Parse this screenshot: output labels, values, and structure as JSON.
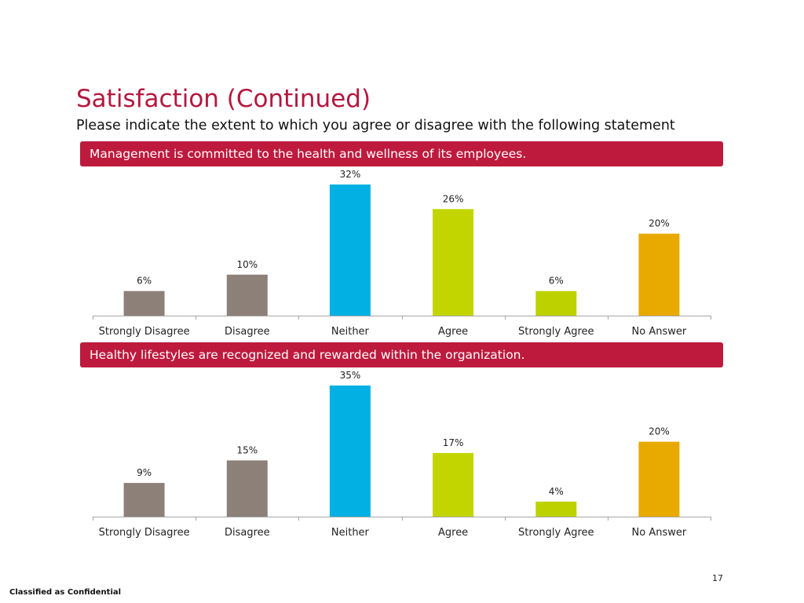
{
  "title": "Satisfaction (Continued)",
  "subtitle": "Please indicate the extent to which you agree or disagree with the following statement",
  "page_number": "17",
  "footer": "Classified as Confidential",
  "chart_data": [
    {
      "type": "bar",
      "title": "Management is committed to the health and wellness of its employees.",
      "categories": [
        "Strongly Disagree",
        "Disagree",
        "Neither",
        "Agree",
        "Strongly Agree",
        "No Answer"
      ],
      "values": [
        6,
        10,
        32,
        26,
        6,
        20
      ],
      "labels": [
        "6%",
        "10%",
        "32%",
        "26%",
        "6%",
        "20%"
      ],
      "colors": [
        "#8c8079",
        "#8c8079",
        "#02b0e3",
        "#c2d500",
        "#bdd100",
        "#e8aa00"
      ],
      "ylim": [
        0,
        32
      ],
      "grid": false
    },
    {
      "type": "bar",
      "title": "Healthy lifestyles are recognized and rewarded within the organization.",
      "categories": [
        "Strongly Disagree",
        "Disagree",
        "Neither",
        "Agree",
        "Strongly Agree",
        "No Answer"
      ],
      "values": [
        9,
        15,
        35,
        17,
        4,
        20
      ],
      "labels": [
        "9%",
        "15%",
        "35%",
        "17%",
        "4%",
        "20%"
      ],
      "colors": [
        "#8c8079",
        "#8c8079",
        "#02b0e3",
        "#c2d500",
        "#bdd100",
        "#e8aa00"
      ],
      "ylim": [
        0,
        35
      ],
      "grid": false
    }
  ]
}
